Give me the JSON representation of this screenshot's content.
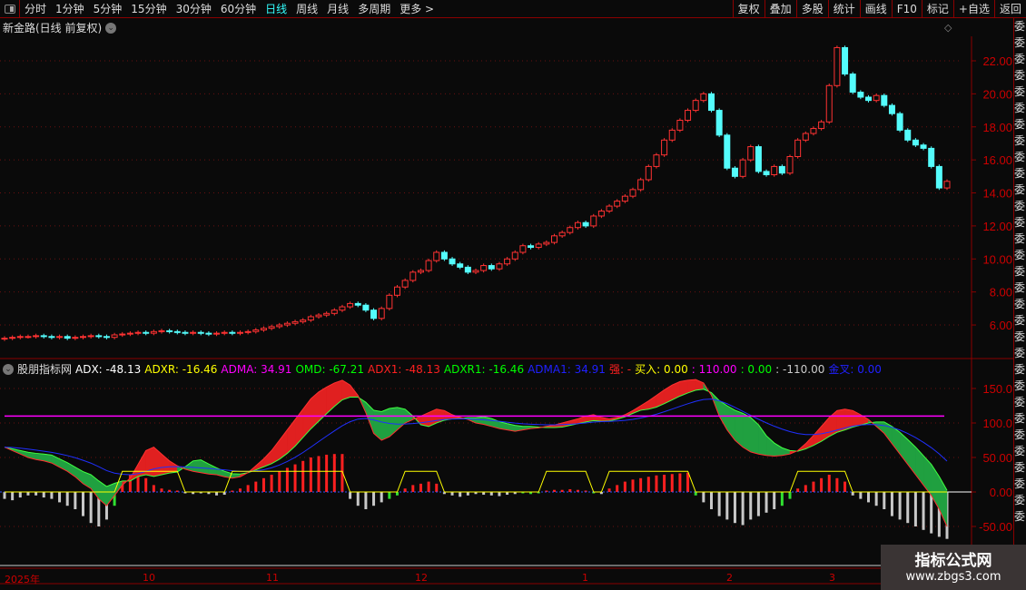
{
  "toolbar": {
    "periods": [
      "分时",
      "1分钟",
      "5分钟",
      "15分钟",
      "30分钟",
      "60分钟",
      "日线",
      "周线",
      "月线",
      "多周期",
      "更多 >"
    ],
    "active": "日线",
    "right": [
      "复权",
      "叠加",
      "多股",
      "统计",
      "画线",
      "F10",
      "标记",
      "+自选",
      "返回"
    ]
  },
  "stock": {
    "title": "新金路(日线 前复权)"
  },
  "indicator": {
    "name": "股朋指标网",
    "items": [
      {
        "label": "ADX: -48.13",
        "color": "#ffffff"
      },
      {
        "label": "ADXR: -16.46",
        "color": "#ffff00"
      },
      {
        "label": "ADMA: 34.91",
        "color": "#ff00ff"
      },
      {
        "label": "OMD: -67.21",
        "color": "#00ff00"
      },
      {
        "label": "ADX1: -48.13",
        "color": "#ff2020"
      },
      {
        "label": "ADXR1: -16.46",
        "color": "#00ff00"
      },
      {
        "label": "ADMA1: 34.91",
        "color": "#2020ff"
      },
      {
        "label": "强: -",
        "color": "#ff2020"
      },
      {
        "label": "买入: 0.00",
        "color": "#ffff00"
      },
      {
        "label": ": 110.00",
        "color": "#ff00ff"
      },
      {
        "label": ": 0.00",
        "color": "#00ff00"
      },
      {
        "label": ": -110.00",
        "color": "#cccccc"
      },
      {
        "label": "金叉: 0.00",
        "color": "#2020ff"
      }
    ]
  },
  "price_axis": [
    "22.00",
    "20.00",
    "18.00",
    "16.00",
    "14.00",
    "12.00",
    "10.00",
    "8.00",
    "6.00"
  ],
  "ind_axis": [
    "150.0",
    "100.0",
    "50.00",
    "0.00",
    "-50.00"
  ],
  "x_axis": [
    "2025年",
    "10",
    "11",
    "12",
    "1",
    "2",
    "3"
  ],
  "right_strip": "委委委委委委委委委委委委委委委委委委委委委委委委委委委委委委委",
  "watermark": {
    "title": "指标公式网",
    "url": "www.zbgs3.com"
  },
  "colors": {
    "up": "#ff3232",
    "down": "#54fcfc",
    "border": "#8b0000",
    "axis_text": "#cc0000",
    "ref_line": "#ff00ff",
    "adma": "#2030ff",
    "signal": "#ffff00"
  },
  "chart_data": {
    "type": "candlestick",
    "ylim": [
      4.5,
      24
    ],
    "ind_ylim": [
      -70,
      180
    ],
    "ref_level": 110,
    "closes": [
      5.2,
      5.25,
      5.3,
      5.3,
      5.35,
      5.3,
      5.25,
      5.3,
      5.2,
      5.25,
      5.3,
      5.35,
      5.3,
      5.25,
      5.4,
      5.45,
      5.5,
      5.55,
      5.5,
      5.6,
      5.65,
      5.6,
      5.55,
      5.5,
      5.55,
      5.5,
      5.45,
      5.5,
      5.55,
      5.5,
      5.55,
      5.6,
      5.7,
      5.8,
      5.9,
      6.0,
      6.1,
      6.2,
      6.3,
      6.5,
      6.6,
      6.7,
      6.9,
      7.1,
      7.3,
      7.2,
      6.9,
      6.4,
      7.0,
      7.8,
      8.3,
      8.7,
      9.2,
      9.3,
      9.9,
      10.4,
      10.0,
      9.7,
      9.5,
      9.2,
      9.3,
      9.6,
      9.4,
      9.7,
      10.0,
      10.4,
      10.8,
      10.7,
      10.9,
      11.0,
      11.4,
      11.6,
      11.9,
      12.2,
      12.0,
      12.6,
      12.9,
      13.2,
      13.5,
      13.8,
      14.2,
      14.8,
      15.6,
      16.3,
      17.2,
      17.8,
      18.4,
      19.0,
      19.6,
      20.0,
      19.0,
      17.5,
      15.5,
      15.0,
      16.0,
      16.8,
      15.3,
      15.1,
      15.6,
      15.2,
      16.2,
      17.2,
      17.6,
      17.9,
      18.3,
      20.5,
      22.8,
      21.2,
      20.1,
      19.8,
      19.6,
      19.9,
      19.3,
      18.8,
      17.8,
      17.2,
      16.9,
      16.7,
      15.6,
      14.3,
      14.7
    ],
    "adx": [
      65,
      60,
      55,
      50,
      47,
      45,
      42,
      36,
      30,
      22,
      12,
      5,
      -10,
      -20,
      -5,
      10,
      20,
      40,
      60,
      65,
      55,
      45,
      38,
      33,
      30,
      28,
      26,
      25,
      22,
      20,
      22,
      28,
      38,
      48,
      60,
      75,
      90,
      105,
      120,
      135,
      145,
      152,
      158,
      162,
      155,
      140,
      115,
      85,
      75,
      80,
      90,
      100,
      105,
      110,
      115,
      120,
      118,
      112,
      108,
      105,
      100,
      98,
      95,
      92,
      90,
      88,
      90,
      92,
      93,
      95,
      97,
      100,
      103,
      106,
      110,
      112,
      108,
      106,
      108,
      112,
      118,
      125,
      132,
      140,
      148,
      155,
      160,
      162,
      163,
      158,
      140,
      110,
      90,
      75,
      65,
      58,
      55,
      53,
      52,
      53,
      55,
      60,
      70,
      82,
      95,
      108,
      118,
      120,
      118,
      112,
      105,
      95,
      85,
      70,
      55,
      40,
      25,
      10,
      -5,
      -25,
      -50
    ],
    "hist": [
      -10,
      -12,
      -8,
      -5,
      -5,
      -8,
      -10,
      -15,
      -20,
      -25,
      -35,
      -45,
      -50,
      -40,
      -20,
      15,
      25,
      28,
      20,
      10,
      5,
      3,
      2,
      -2,
      -3,
      -2,
      -3,
      -5,
      -4,
      2,
      5,
      10,
      15,
      20,
      25,
      30,
      35,
      40,
      45,
      50,
      52,
      54,
      55,
      55,
      -10,
      -20,
      -25,
      -20,
      -15,
      -10,
      -5,
      5,
      10,
      12,
      15,
      12,
      -3,
      -5,
      -7,
      -5,
      -3,
      -4,
      -5,
      -6,
      -4,
      -3,
      -2,
      -3,
      -2,
      2,
      3,
      3,
      4,
      3,
      2,
      -2,
      -3,
      5,
      10,
      15,
      18,
      20,
      22,
      24,
      25,
      26,
      27,
      28,
      -5,
      -15,
      -25,
      -35,
      -40,
      -45,
      -48,
      -40,
      -35,
      -30,
      -25,
      -20,
      -10,
      5,
      10,
      15,
      20,
      25,
      20,
      15,
      -5,
      -10,
      -15,
      -20,
      -25,
      -35,
      -40,
      -45,
      -50,
      -55,
      -60,
      -65,
      -68
    ]
  }
}
